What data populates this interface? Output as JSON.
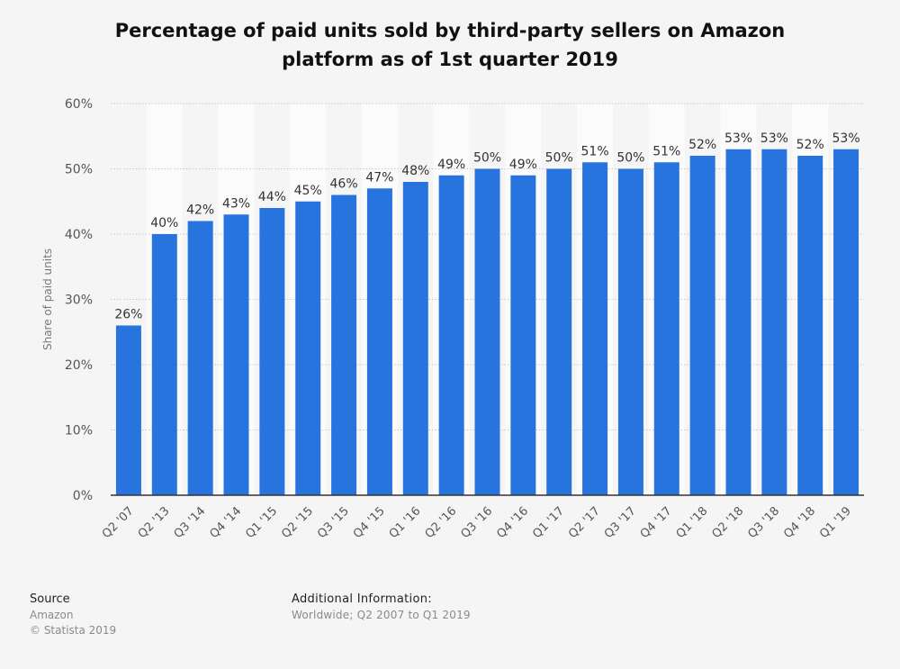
{
  "title": "Percentage of paid units sold by third-party sellers on Amazon platform as of 1st quarter 2019",
  "chart_data": {
    "type": "bar",
    "ylabel": "Share of paid units",
    "xlabel": "",
    "ylim": [
      0,
      60
    ],
    "yticks": [
      0,
      10,
      20,
      30,
      40,
      50,
      60
    ],
    "ytick_labels": [
      "0%",
      "10%",
      "20%",
      "30%",
      "40%",
      "50%",
      "60%"
    ],
    "grid": true,
    "categories": [
      "Q2 '07",
      "Q2 '13",
      "Q3 '14",
      "Q4 '14",
      "Q1 '15",
      "Q2 '15",
      "Q3 '15",
      "Q4 '15",
      "Q1 '16",
      "Q2 '16",
      "Q3 '16",
      "Q4 '16",
      "Q1 '17",
      "Q2 '17",
      "Q3 '17",
      "Q4 '17",
      "Q1 '18",
      "Q2 '18",
      "Q3 '18",
      "Q4 '18",
      "Q1 '19"
    ],
    "values": [
      26,
      40,
      42,
      43,
      44,
      45,
      46,
      47,
      48,
      49,
      50,
      49,
      50,
      51,
      50,
      51,
      52,
      53,
      53,
      52,
      53
    ],
    "value_labels": [
      "26%",
      "40%",
      "42%",
      "43%",
      "44%",
      "45%",
      "46%",
      "47%",
      "48%",
      "49%",
      "50%",
      "49%",
      "50%",
      "51%",
      "50%",
      "51%",
      "52%",
      "53%",
      "53%",
      "52%",
      "53%"
    ],
    "bar_color": "#2874df"
  },
  "source": {
    "label": "Source",
    "name": "Amazon",
    "copyright": "© Statista 2019"
  },
  "additional_info": {
    "label": "Additional Information:",
    "text": "Worldwide; Q2 2007 to Q1 2019"
  }
}
